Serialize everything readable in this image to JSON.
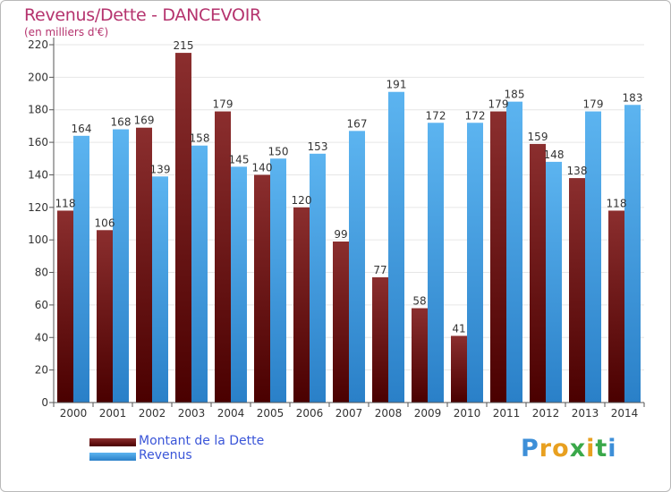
{
  "header": {
    "title": "Revenus/Dette - DANCEVOIR",
    "subtitle": "(en milliers d'€)"
  },
  "legend": [
    {
      "label": "Montant de la Dette",
      "color": "#7a1a1a"
    },
    {
      "label": "Revenus",
      "color": "#3d9ee4"
    }
  ],
  "logo": {
    "text": "Proxiti"
  },
  "colors": {
    "dette_top": "#8b2e2e",
    "dette_bottom": "#4a0000",
    "revenus_top": "#5cb4f0",
    "revenus_bottom": "#2a80c8",
    "axis": "#555555",
    "grid": "#e6e6e6",
    "title": "#b5336e",
    "legend_text": "#3a55d8"
  },
  "chart_data": {
    "type": "bar",
    "title": "Revenus/Dette - DANCEVOIR",
    "subtitle": "(en milliers d'€)",
    "categories": [
      "2000",
      "2001",
      "2002",
      "2003",
      "2004",
      "2005",
      "2006",
      "2007",
      "2008",
      "2009",
      "2010",
      "2011",
      "2012",
      "2013",
      "2014"
    ],
    "series": [
      {
        "name": "Montant de la Dette",
        "values": [
          118,
          106,
          169,
          215,
          179,
          140,
          120,
          99,
          77,
          58,
          41,
          179,
          159,
          138,
          118
        ]
      },
      {
        "name": "Revenus",
        "values": [
          164,
          168,
          139,
          158,
          145,
          150,
          153,
          167,
          191,
          172,
          172,
          185,
          148,
          179,
          183
        ]
      }
    ],
    "ylim": [
      0,
      220
    ],
    "yticks": [
      0,
      20,
      40,
      60,
      80,
      100,
      120,
      140,
      160,
      180,
      200,
      220
    ],
    "grid": true,
    "legend_position": "bottom-left"
  }
}
